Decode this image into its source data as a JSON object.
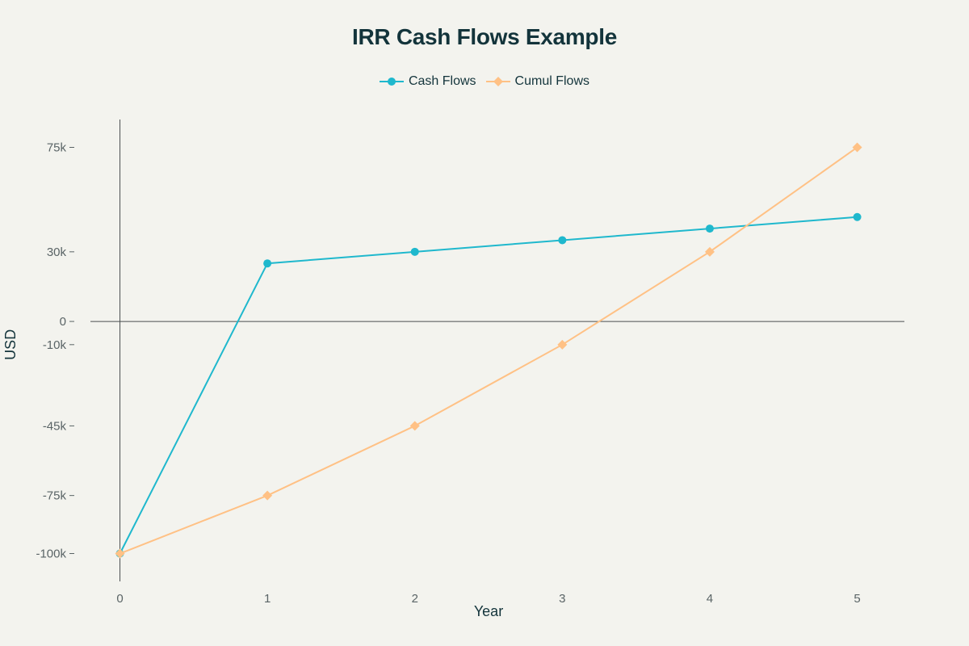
{
  "chart_data": {
    "type": "line",
    "title": "IRR Cash Flows Example",
    "xlabel": "Year",
    "ylabel": "USD",
    "x": [
      0,
      1,
      2,
      3,
      4,
      5
    ],
    "xticks": [
      "0",
      "1",
      "2",
      "3",
      "4",
      "5"
    ],
    "yticks": [
      {
        "value": 75000,
        "label": "75k"
      },
      {
        "value": 30000,
        "label": "30k"
      },
      {
        "value": 0,
        "label": "0"
      },
      {
        "value": -10000,
        "label": "-10k"
      },
      {
        "value": -45000,
        "label": "-45k"
      },
      {
        "value": -75000,
        "label": "-75k"
      },
      {
        "value": -100000,
        "label": "-100k"
      }
    ],
    "xlim": [
      -0.2,
      5.32
    ],
    "ylim": [
      -112000,
      87000
    ],
    "grid": false,
    "legend_position": "top-center",
    "series": [
      {
        "name": "Cash Flows",
        "color": "#1fb8cd",
        "marker": "circle",
        "values": [
          -100000,
          25000,
          30000,
          35000,
          40000,
          45000
        ]
      },
      {
        "name": "Cumul Flows",
        "color": "#ffc185",
        "marker": "diamond",
        "values": [
          -100000,
          -75000,
          -45000,
          -10000,
          30000,
          75000
        ]
      }
    ]
  }
}
